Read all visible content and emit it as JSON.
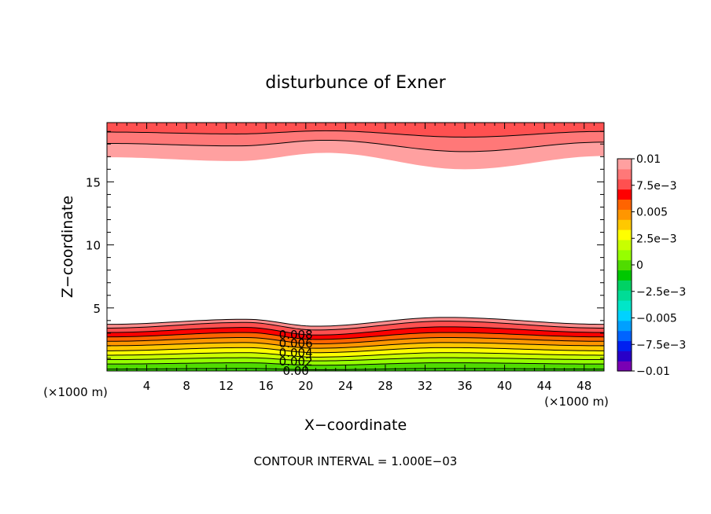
{
  "chart_data": {
    "type": "contour",
    "title": "disturbunce of Exner",
    "xlabel": "X−coordinate",
    "ylabel": "Z−coordinate",
    "x_unit_left": "(×1000 m)",
    "x_unit_right": "(×1000 m)",
    "footer": "CONTOUR INTERVAL = 1.000E−03",
    "xlim": [
      0,
      50
    ],
    "ylim": [
      0,
      19.7
    ],
    "x_ticks": [
      "4",
      "8",
      "12",
      "16",
      "20",
      "24",
      "28",
      "32",
      "36",
      "40",
      "44",
      "48"
    ],
    "x_tick_values": [
      4,
      8,
      12,
      16,
      20,
      24,
      28,
      32,
      36,
      40,
      44,
      48
    ],
    "y_ticks": [
      "5",
      "10",
      "15"
    ],
    "y_tick_values": [
      5,
      10,
      15
    ],
    "contour_labels": [
      "0.008",
      "0.006",
      "0.004",
      "0.002",
      "0.00"
    ],
    "contour_label_x": 19,
    "colorbar": {
      "labels": [
        "0.01",
        "7.5e−3",
        "0.005",
        "2.5e−3",
        "0",
        "−2.5e−3",
        "−0.005",
        "−7.5e−3",
        "−0.01"
      ],
      "label_values": [
        0.01,
        0.0075,
        0.005,
        0.0025,
        0,
        -0.0025,
        -0.005,
        -0.0075,
        -0.01
      ],
      "min": -0.01,
      "max": 0.01,
      "colors": [
        "#7a00b4",
        "#2800c8",
        "#0020f0",
        "#0064ff",
        "#00a0ff",
        "#00d2ff",
        "#00e6c8",
        "#00dc96",
        "#00d264",
        "#00c800",
        "#50dc00",
        "#96ff00",
        "#c8ff00",
        "#ffff00",
        "#ffc800",
        "#ff9600",
        "#ff6400",
        "#ff0000",
        "#ff5050",
        "#ff7878",
        "#ffa0a0"
      ]
    },
    "bottom_layer": {
      "contour_levels": [
        0.0,
        0.001,
        0.002,
        0.003,
        0.004,
        0.005,
        0.006,
        0.007,
        0.008,
        0.009
      ],
      "band_colors": [
        "#32d200",
        "#50dc00",
        "#96ff00",
        "#c8ff00",
        "#ffff00",
        "#ffc800",
        "#ff9600",
        "#ff6400",
        "#ff0000",
        "#ff5050",
        "#ff8c8c"
      ],
      "levels": [
        {
          "value": 0.0,
          "heights": [
            [
              0,
              0.15
            ],
            [
              14,
              0.2
            ],
            [
              21,
              0.1
            ],
            [
              34,
              0.2
            ],
            [
              50,
              0.15
            ]
          ]
        },
        {
          "value": 0.001,
          "heights": [
            [
              0,
              0.55
            ],
            [
              14,
              0.65
            ],
            [
              21,
              0.45
            ],
            [
              34,
              0.65
            ],
            [
              50,
              0.55
            ]
          ]
        },
        {
          "value": 0.002,
          "heights": [
            [
              0,
              0.9
            ],
            [
              14,
              1.05
            ],
            [
              21,
              0.8
            ],
            [
              34,
              1.05
            ],
            [
              50,
              0.9
            ]
          ]
        },
        {
          "value": 0.003,
          "heights": [
            [
              0,
              1.25
            ],
            [
              14,
              1.45
            ],
            [
              21,
              1.1
            ],
            [
              34,
              1.45
            ],
            [
              50,
              1.25
            ]
          ]
        },
        {
          "value": 0.004,
          "heights": [
            [
              0,
              1.6
            ],
            [
              14,
              1.85
            ],
            [
              21,
              1.45
            ],
            [
              34,
              1.85
            ],
            [
              50,
              1.6
            ]
          ]
        },
        {
          "value": 0.005,
          "heights": [
            [
              0,
              2.0
            ],
            [
              14,
              2.25
            ],
            [
              21,
              1.8
            ],
            [
              34,
              2.25
            ],
            [
              50,
              2.0
            ]
          ]
        },
        {
          "value": 0.006,
          "heights": [
            [
              0,
              2.35
            ],
            [
              14,
              2.65
            ],
            [
              21,
              2.15
            ],
            [
              34,
              2.65
            ],
            [
              50,
              2.35
            ]
          ]
        },
        {
          "value": 0.007,
          "heights": [
            [
              0,
              2.7
            ],
            [
              14,
              3.05
            ],
            [
              21,
              2.5
            ],
            [
              34,
              3.05
            ],
            [
              50,
              2.7
            ]
          ]
        },
        {
          "value": 0.008,
          "heights": [
            [
              0,
              3.05
            ],
            [
              14,
              3.45
            ],
            [
              21,
              2.85
            ],
            [
              34,
              3.5
            ],
            [
              50,
              3.05
            ]
          ]
        },
        {
          "value": 0.009,
          "heights": [
            [
              0,
              3.4
            ],
            [
              14,
              3.85
            ],
            [
              21,
              3.25
            ],
            [
              34,
              3.95
            ],
            [
              50,
              3.4
            ]
          ]
        },
        {
          "value": 0.0095,
          "heights": [
            [
              0,
              3.7
            ],
            [
              14,
              4.1
            ],
            [
              21,
              3.55
            ],
            [
              34,
              4.25
            ],
            [
              50,
              3.7
            ]
          ]
        }
      ]
    },
    "top_layer": {
      "band_colors": [
        "#ffa0a0",
        "#ff7878",
        "#ff5050"
      ],
      "boundaries": [
        {
          "heights": [
            [
              0,
              16.95
            ],
            [
              13,
              16.65
            ],
            [
              22,
              17.3
            ],
            [
              36,
              16.0
            ],
            [
              50,
              17.05
            ]
          ]
        },
        {
          "heights": [
            [
              0,
              18.05
            ],
            [
              13,
              17.85
            ],
            [
              22,
              18.3
            ],
            [
              36,
              17.4
            ],
            [
              50,
              18.15
            ]
          ]
        },
        {
          "heights": [
            [
              0,
              18.95
            ],
            [
              13,
              18.8
            ],
            [
              22,
              19.05
            ],
            [
              36,
              18.55
            ],
            [
              50,
              19.0
            ]
          ]
        }
      ]
    }
  }
}
